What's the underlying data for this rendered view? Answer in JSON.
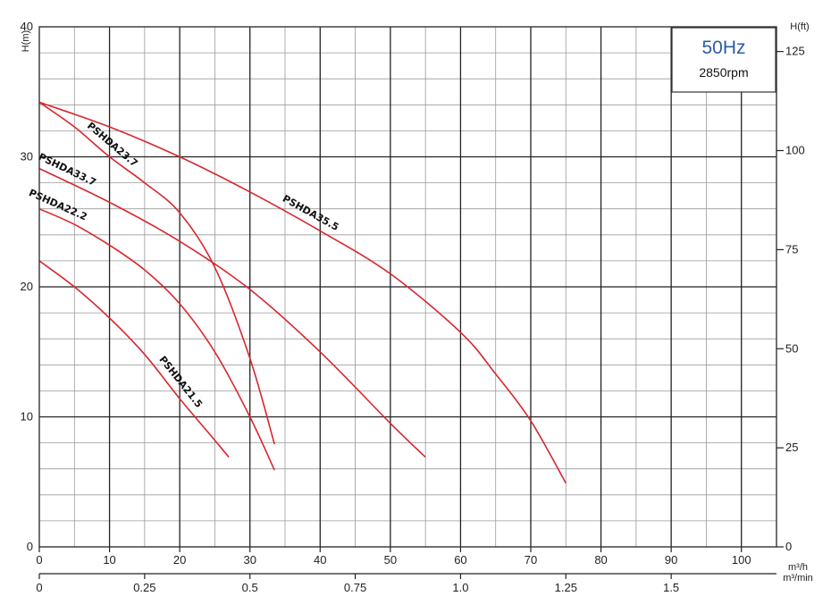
{
  "chart_data": {
    "type": "line",
    "x_axis": {
      "label": "m³/h",
      "range": [
        0,
        105
      ],
      "ticks": [
        0,
        10,
        20,
        30,
        40,
        50,
        60,
        70,
        80,
        90,
        100
      ]
    },
    "x2_axis": {
      "label": "m³/min",
      "ticks": [
        0,
        0.25,
        0.5,
        0.75,
        1.0,
        1.25,
        1.5
      ],
      "tick_labels": [
        "0",
        "0.25",
        "0.5",
        "0.75",
        "1.0",
        "1.25",
        "1.5"
      ]
    },
    "y_axis": {
      "label": "H(m)",
      "range": [
        0,
        40
      ],
      "ticks": [
        0,
        10,
        20,
        30,
        40
      ]
    },
    "y2_axis": {
      "label": "H(ft)",
      "ticks": [
        0,
        25,
        50,
        75,
        100,
        125
      ]
    },
    "grid": true,
    "info_box": {
      "frequency": "50Hz",
      "speed": "2850rpm"
    },
    "series": [
      {
        "name": "PSHDA35.5",
        "color": "#d9262e",
        "x": [
          0,
          10,
          20,
          30,
          40,
          50,
          60,
          65,
          70,
          75
        ],
        "y": [
          34.2,
          32.3,
          30.0,
          27.3,
          24.3,
          21.0,
          16.5,
          13.3,
          9.7,
          4.9
        ]
      },
      {
        "name": "PSHDA23.7",
        "color": "#d9262e",
        "x": [
          0,
          5,
          10,
          15,
          20,
          25,
          30,
          33.5
        ],
        "y": [
          34.2,
          32.3,
          30.0,
          28.0,
          25.7,
          21.5,
          14.5,
          7.9
        ]
      },
      {
        "name": "PSHDA33.7",
        "color": "#d9262e",
        "x": [
          0,
          10,
          20,
          30,
          40,
          50,
          55
        ],
        "y": [
          29.1,
          26.5,
          23.5,
          19.8,
          15.0,
          9.5,
          6.9
        ]
      },
      {
        "name": "PSHDA22.2",
        "color": "#d9262e",
        "x": [
          0,
          5,
          10,
          15,
          20,
          25,
          30,
          33.5
        ],
        "y": [
          26.0,
          24.8,
          23.2,
          21.3,
          18.7,
          15.0,
          10.0,
          5.9
        ]
      },
      {
        "name": "PSHDA21.5",
        "color": "#d9262e",
        "x": [
          0,
          5,
          10,
          15,
          20,
          25,
          27
        ],
        "y": [
          22.0,
          20.0,
          17.6,
          14.8,
          11.4,
          8.2,
          6.9
        ]
      }
    ]
  }
}
